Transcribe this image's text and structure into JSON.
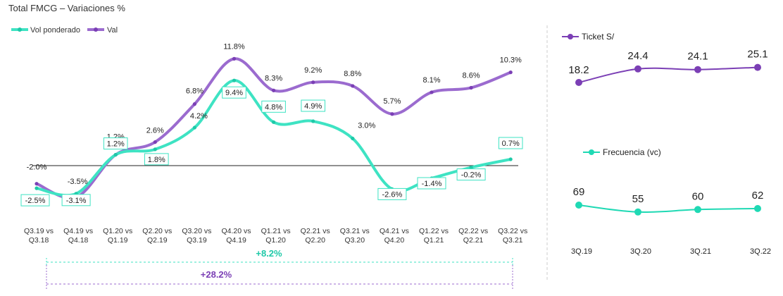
{
  "title": "Total FMCG – Variaciones %",
  "chart_data": [
    {
      "type": "line",
      "title": "Total FMCG – Variaciones %",
      "categories": [
        "Q3.19 vs Q3.18",
        "Q4.19 vs Q4.18",
        "Q1.20 vs Q1.19",
        "Q2.20 vs Q2.19",
        "Q3.20 vs Q3.19",
        "Q4.20 vs Q4.19",
        "Q1.21 vs Q1.20",
        "Q2.21 vs Q2.20",
        "Q3.21 vs Q3.20",
        "Q4.21 vs Q4.20",
        "Q1.22 vs Q1.21",
        "Q2.22 vs Q2.21",
        "Q3.22 vs Q3.21"
      ],
      "series": [
        {
          "name": "Vol ponderado",
          "color": "#3ee3c3",
          "values": [
            -2.5,
            -3.1,
            1.2,
            1.8,
            4.2,
            9.4,
            4.8,
            4.9,
            3.0,
            -2.6,
            -1.4,
            -0.2,
            0.7
          ],
          "labels": [
            "-2.5%",
            "-3.1%",
            "1.2%",
            "1.8%",
            "4.2%",
            "9.4%",
            "4.8%",
            "4.9%",
            "3.0%",
            "-2.6%",
            "-1.4%",
            "-0.2%",
            "0.7%"
          ]
        },
        {
          "name": "Val",
          "color": "#9b6bcf",
          "values": [
            -2.0,
            -3.5,
            1.2,
            2.6,
            6.8,
            11.8,
            8.3,
            9.2,
            8.8,
            5.7,
            8.1,
            8.6,
            10.3
          ],
          "labels": [
            "-2.0%",
            "-3.5%",
            "1.2%",
            "2.6%",
            "6.8%",
            "11.8%",
            "8.3%",
            "9.2%",
            "8.8%",
            "5.7%",
            "8.1%",
            "8.6%",
            "10.3%"
          ]
        }
      ],
      "ylim": [
        -5,
        15
      ],
      "annotations": [
        {
          "text": "+8.2%",
          "color": "#1fc9a8"
        },
        {
          "text": "+28.2%",
          "color": "#7b3fb5"
        }
      ]
    },
    {
      "type": "line",
      "title": "Ticket S/",
      "categories": [
        "3Q.19",
        "3Q.20",
        "3Q.21",
        "3Q.22"
      ],
      "series": [
        {
          "name": "Ticket S/",
          "color": "#7b3fb5",
          "values": [
            18.2,
            24.4,
            24.1,
            25.1
          ],
          "labels": [
            "18.2",
            "24.4",
            "24.1",
            "25.1"
          ]
        }
      ]
    },
    {
      "type": "line",
      "title": "Frecuencia (vc)",
      "categories": [
        "3Q.19",
        "3Q.20",
        "3Q.21",
        "3Q.22"
      ],
      "series": [
        {
          "name": "Frecuencia (vc)",
          "color": "#1fd9b4",
          "values": [
            69,
            55,
            60,
            62
          ],
          "labels": [
            "69",
            "55",
            "60",
            "62"
          ]
        }
      ]
    }
  ]
}
